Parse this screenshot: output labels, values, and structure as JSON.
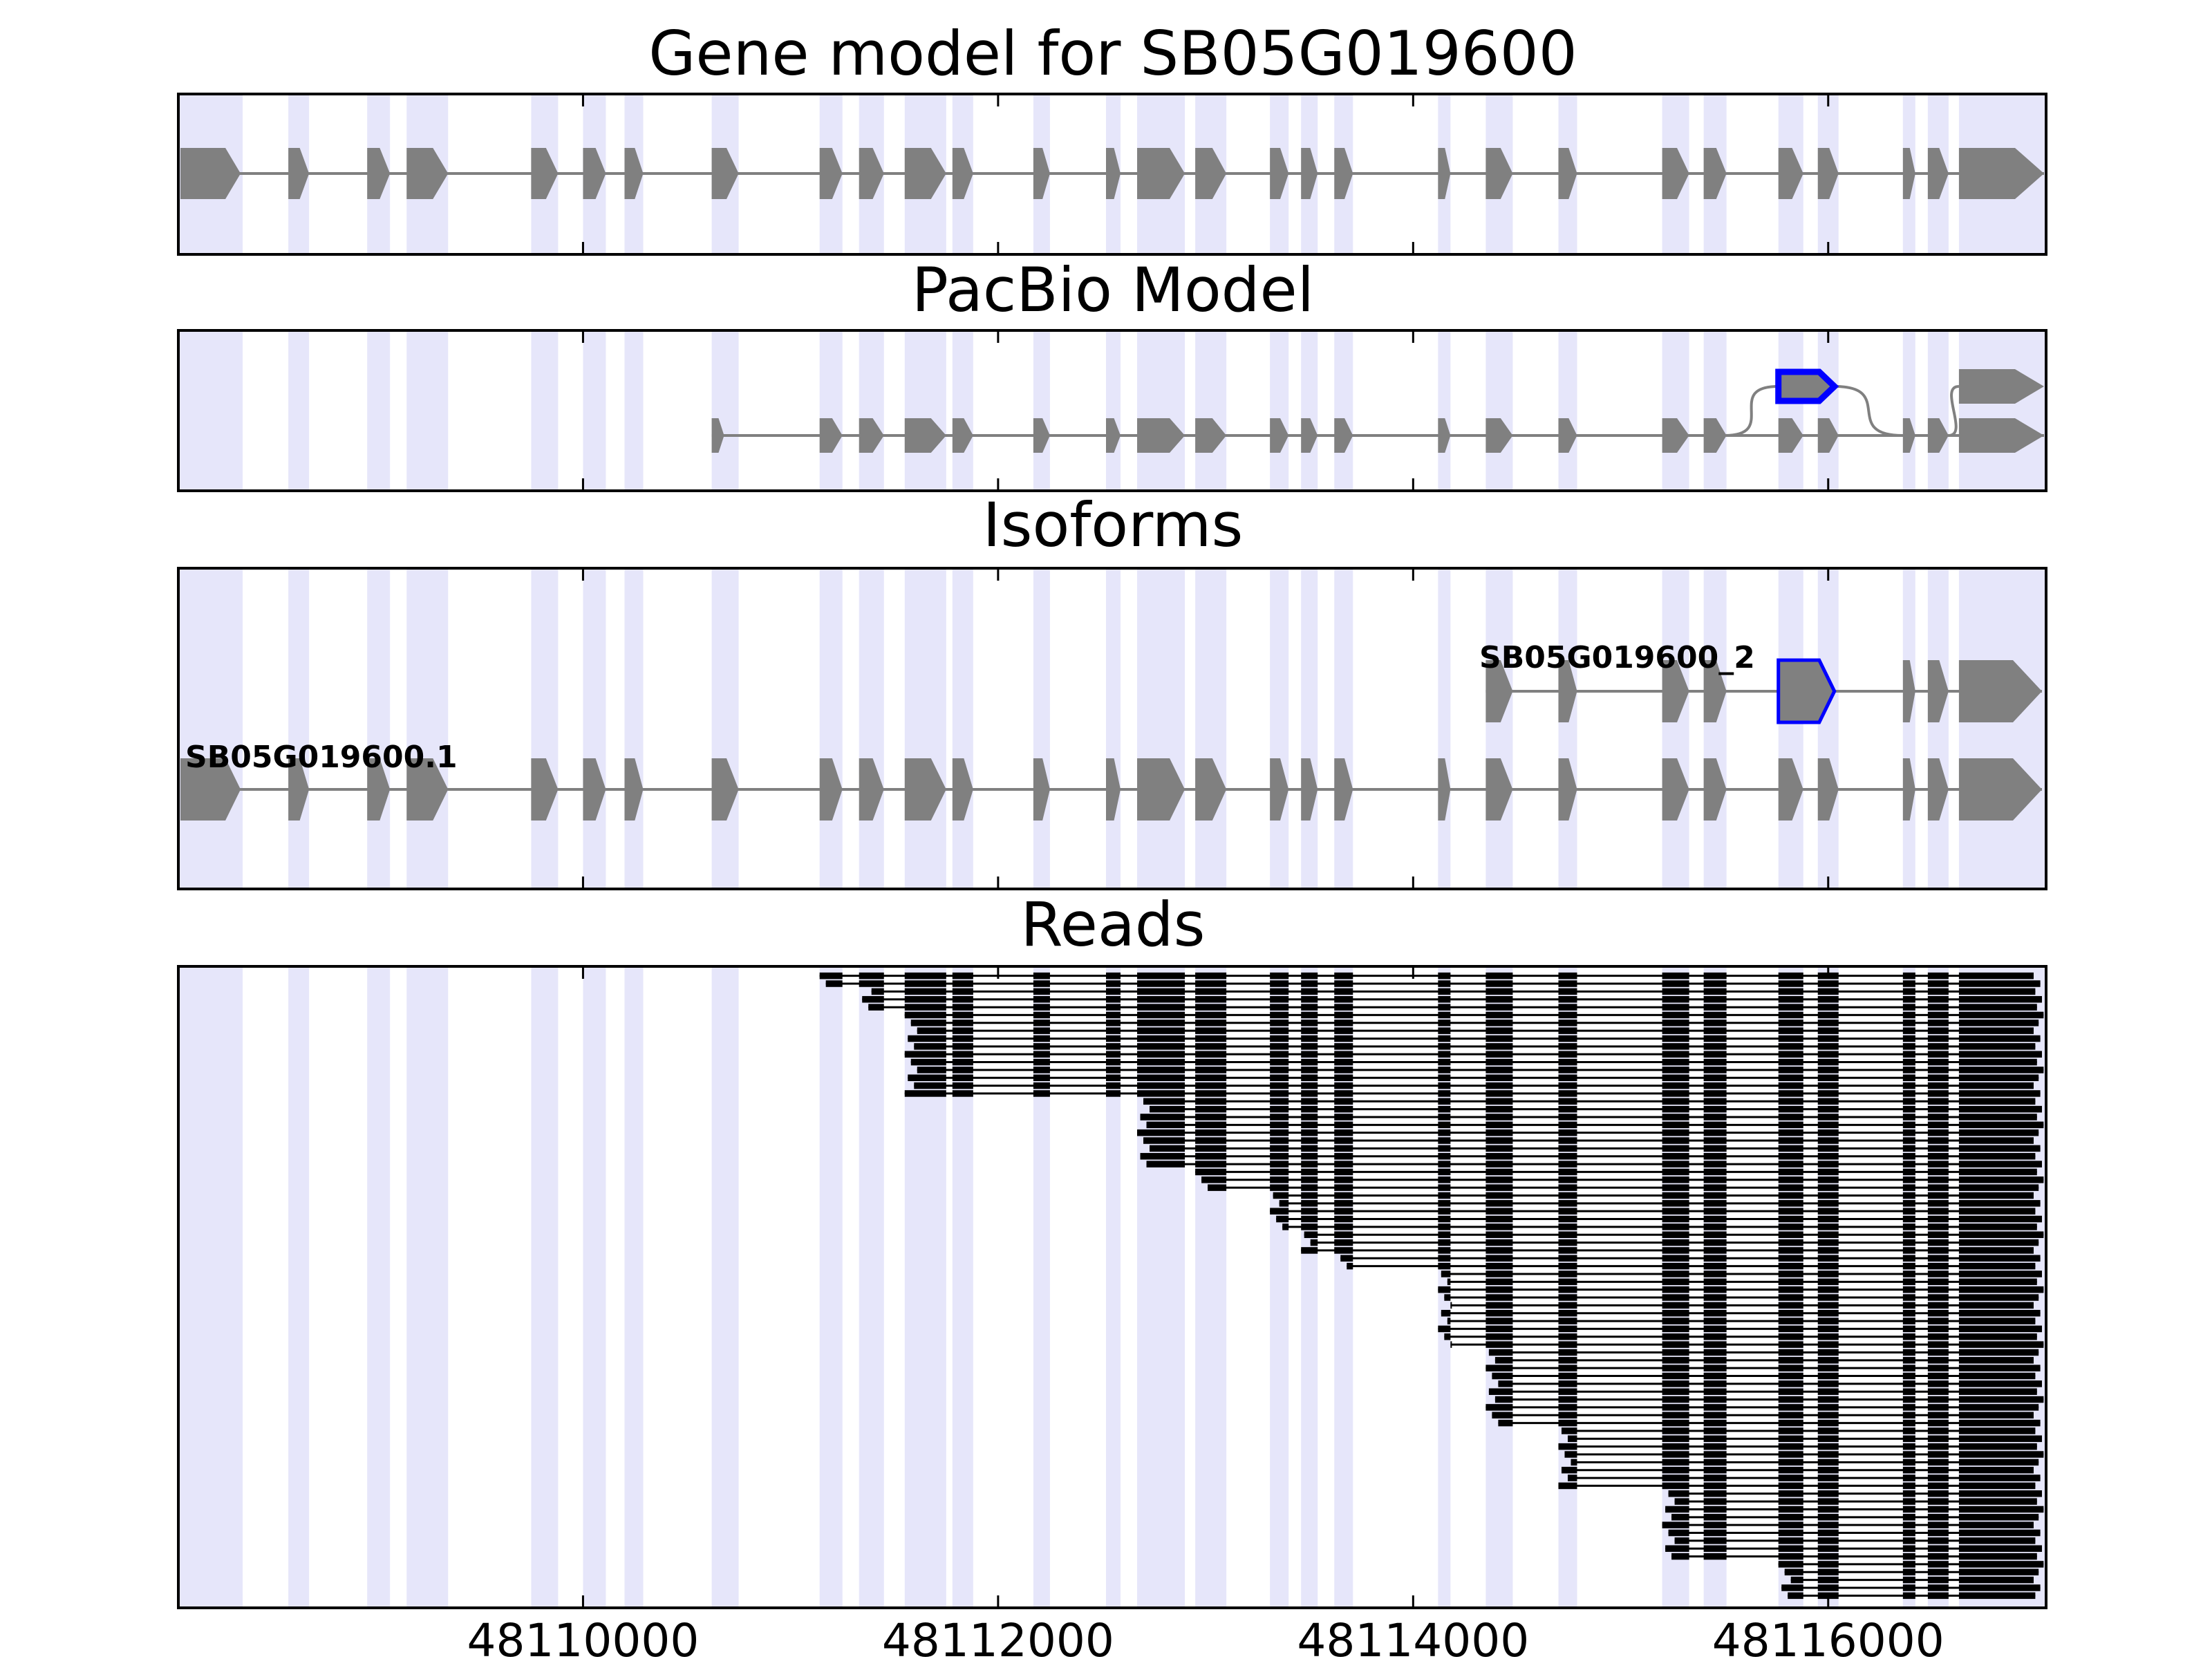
{
  "panels": [
    {
      "key": "gene",
      "title": "Gene model for SB05G019600"
    },
    {
      "key": "pacbio",
      "title": "PacBio Model"
    },
    {
      "key": "isoforms",
      "title": "Isoforms"
    },
    {
      "key": "reads",
      "title": "Reads"
    }
  ],
  "isoform_labels": [
    "SB05G019600.1",
    "SB05G019600_2"
  ],
  "chart_data": {
    "type": "gene-structure",
    "x_ticks": [
      48110000,
      48112000,
      48114000,
      48116000
    ],
    "x_tick_labels": [
      "48110000",
      "48112000",
      "48114000",
      "48116000"
    ],
    "xlim": [
      48108050,
      48117050
    ],
    "colors": {
      "exon": "#808080",
      "highlight": "#0000ff",
      "shade": "#e6e6fa",
      "read": "#000000"
    },
    "exons": [
      [
        48108050,
        48108360
      ],
      [
        48108580,
        48108680
      ],
      [
        48108960,
        48109070
      ],
      [
        48109150,
        48109350
      ],
      [
        48109750,
        48109880
      ],
      [
        48110000,
        48110110
      ],
      [
        48110200,
        48110290
      ],
      [
        48110620,
        48110750
      ],
      [
        48111140,
        48111250
      ],
      [
        48111330,
        48111450
      ],
      [
        48111550,
        48111750
      ],
      [
        48111780,
        48111880
      ],
      [
        48112170,
        48112250
      ],
      [
        48112520,
        48112590
      ],
      [
        48112670,
        48112900
      ],
      [
        48112950,
        48113100
      ],
      [
        48113310,
        48113400
      ],
      [
        48113460,
        48113540
      ],
      [
        48113620,
        48113710
      ],
      [
        48114120,
        48114180
      ],
      [
        48114350,
        48114480
      ],
      [
        48114700,
        48114790
      ],
      [
        48115200,
        48115330
      ],
      [
        48115400,
        48115510
      ],
      [
        48115760,
        48115880
      ],
      [
        48115950,
        48116050
      ],
      [
        48116360,
        48116420
      ],
      [
        48116480,
        48116580
      ],
      [
        48116630,
        48117050
      ]
    ],
    "gene_model_exons": [
      [
        48108060,
        48108350
      ],
      [
        48108580,
        48108680
      ],
      [
        48108960,
        48109070
      ],
      [
        48109150,
        48109350
      ],
      [
        48109750,
        48109880
      ],
      [
        48110000,
        48110110
      ],
      [
        48110200,
        48110290
      ],
      [
        48110620,
        48110750
      ],
      [
        48111140,
        48111250
      ],
      [
        48111330,
        48111450
      ],
      [
        48111550,
        48111750
      ],
      [
        48111780,
        48111880
      ],
      [
        48112170,
        48112250
      ],
      [
        48112520,
        48112590
      ],
      [
        48112670,
        48112900
      ],
      [
        48112950,
        48113100
      ],
      [
        48113310,
        48113400
      ],
      [
        48113460,
        48113540
      ],
      [
        48113620,
        48113710
      ],
      [
        48114120,
        48114180
      ],
      [
        48114350,
        48114480
      ],
      [
        48114700,
        48114790
      ],
      [
        48115200,
        48115330
      ],
      [
        48115400,
        48115510
      ],
      [
        48115760,
        48115880
      ],
      [
        48115950,
        48116050
      ],
      [
        48116360,
        48116420
      ],
      [
        48116480,
        48116580
      ],
      [
        48116630,
        48117040
      ]
    ],
    "pacbio_main_exons": [
      [
        48110620,
        48110680
      ],
      [
        48111140,
        48111250
      ],
      [
        48111330,
        48111450
      ],
      [
        48111550,
        48111750
      ],
      [
        48111780,
        48111880
      ],
      [
        48112170,
        48112250
      ],
      [
        48112520,
        48112590
      ],
      [
        48112670,
        48112900
      ],
      [
        48112950,
        48113100
      ],
      [
        48113310,
        48113400
      ],
      [
        48113460,
        48113540
      ],
      [
        48113620,
        48113710
      ],
      [
        48114120,
        48114180
      ],
      [
        48114350,
        48114480
      ],
      [
        48114700,
        48114790
      ],
      [
        48115200,
        48115330
      ],
      [
        48115400,
        48115510
      ],
      [
        48115760,
        48115880
      ],
      [
        48115950,
        48116050
      ],
      [
        48116360,
        48116420
      ],
      [
        48116480,
        48116580
      ],
      [
        48116630,
        48117040
      ]
    ],
    "pacbio_alt_exons": [
      [
        48115760,
        48116030
      ],
      [
        48116630,
        48117040
      ]
    ],
    "isoform_1_exons": [
      [
        48108060,
        48108350
      ],
      [
        48108580,
        48108680
      ],
      [
        48108960,
        48109070
      ],
      [
        48109150,
        48109350
      ],
      [
        48109750,
        48109880
      ],
      [
        48110000,
        48110110
      ],
      [
        48110200,
        48110290
      ],
      [
        48110620,
        48110750
      ],
      [
        48111140,
        48111250
      ],
      [
        48111330,
        48111450
      ],
      [
        48111550,
        48111750
      ],
      [
        48111780,
        48111880
      ],
      [
        48112170,
        48112250
      ],
      [
        48112520,
        48112590
      ],
      [
        48112670,
        48112900
      ],
      [
        48112950,
        48113100
      ],
      [
        48113310,
        48113400
      ],
      [
        48113460,
        48113540
      ],
      [
        48113620,
        48113710
      ],
      [
        48114120,
        48114180
      ],
      [
        48114350,
        48114480
      ],
      [
        48114700,
        48114790
      ],
      [
        48115200,
        48115330
      ],
      [
        48115400,
        48115510
      ],
      [
        48115760,
        48115880
      ],
      [
        48115950,
        48116050
      ],
      [
        48116360,
        48116420
      ],
      [
        48116480,
        48116580
      ],
      [
        48116630,
        48117030
      ]
    ],
    "isoform_2_exons": [
      [
        48114350,
        48114480
      ],
      [
        48114700,
        48114790
      ],
      [
        48115200,
        48115330
      ],
      [
        48115400,
        48115510
      ],
      [
        48115760,
        48116030
      ],
      [
        48116360,
        48116420
      ],
      [
        48116480,
        48116580
      ],
      [
        48116630,
        48117030
      ]
    ],
    "reads_count": 80
  }
}
